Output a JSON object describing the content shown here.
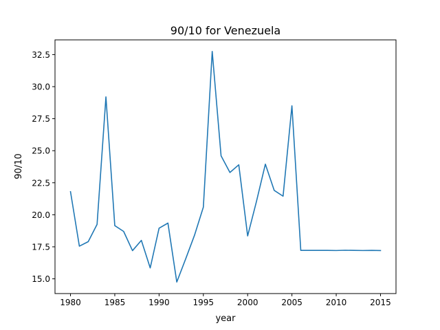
{
  "chart_data": {
    "type": "line",
    "title": "90/10 for Venezuela",
    "xlabel": "year",
    "ylabel": "90/10",
    "xlim": [
      1978.25,
      2016.75
    ],
    "ylim": [
      13.85,
      33.65
    ],
    "xticks": [
      1980,
      1985,
      1990,
      1995,
      2000,
      2005,
      2010,
      2015
    ],
    "yticks": [
      15.0,
      17.5,
      20.0,
      22.5,
      25.0,
      27.5,
      30.0,
      32.5
    ],
    "xtick_labels": [
      "1980",
      "1985",
      "1990",
      "1995",
      "2000",
      "2005",
      "2010",
      "2015"
    ],
    "ytick_labels": [
      "15.0",
      "17.5",
      "20.0",
      "22.5",
      "25.0",
      "27.5",
      "30.0",
      "32.5"
    ],
    "grid": false,
    "colors": {
      "line": "#1f77b4",
      "axes": "#000000",
      "background": "#ffffff"
    },
    "series": [
      {
        "x": [
          1980,
          1981,
          1982,
          1983,
          1984,
          1985,
          1986,
          1987,
          1988,
          1989,
          1990,
          1991,
          1992,
          1993,
          1994,
          1995,
          1996,
          1997,
          1998,
          1999,
          2000,
          2001,
          2002,
          2003,
          2004,
          2005,
          2006,
          2007,
          2008,
          2009,
          2010,
          2011,
          2012,
          2013,
          2014,
          2015
        ],
        "values": [
          21.8,
          17.55,
          17.9,
          19.25,
          29.2,
          19.15,
          18.7,
          17.2,
          18.0,
          15.85,
          18.95,
          19.35,
          14.75,
          16.55,
          18.4,
          20.6,
          32.75,
          24.6,
          23.3,
          23.9,
          18.35,
          21.05,
          23.95,
          21.9,
          21.45,
          28.5,
          17.22,
          17.22,
          17.22,
          17.22,
          17.21,
          17.23,
          17.22,
          17.21,
          17.22,
          17.21
        ]
      }
    ]
  }
}
